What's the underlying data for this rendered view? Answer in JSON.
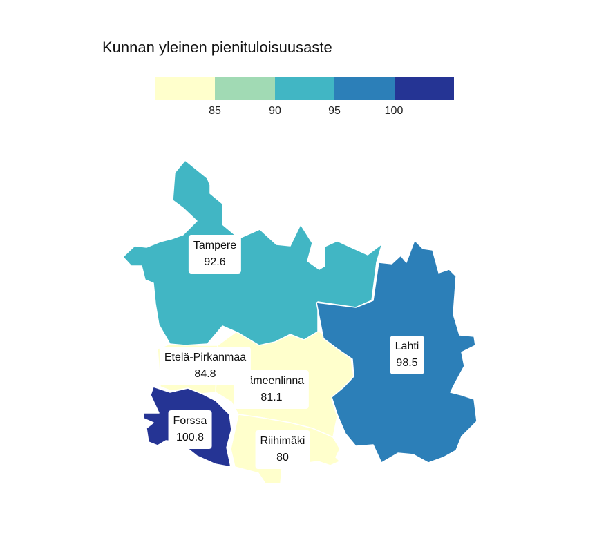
{
  "title": "Kunnan yleinen pienituloisuusaste",
  "legend": {
    "colors": [
      "#ffffcc",
      "#a1dab4",
      "#41b6c4",
      "#2c7fb8",
      "#253494"
    ],
    "ticks": [
      "85",
      "90",
      "95",
      "100"
    ]
  },
  "chart_data": {
    "type": "choropleth",
    "title": "Kunnan yleinen pienituloisuusaste",
    "bins": [
      85,
      90,
      95,
      100
    ],
    "regions": [
      {
        "name": "Tampere",
        "value": 92.6,
        "value_label": "92.6",
        "color": "#41b6c4"
      },
      {
        "name": "Lahti",
        "value": 98.5,
        "value_label": "98.5",
        "color": "#2c7fb8"
      },
      {
        "name": "Etelä-Pirkanmaa",
        "value": 84.8,
        "value_label": "84.8",
        "color": "#ffffcc"
      },
      {
        "name": "Hämeenlinna",
        "value": 81.1,
        "value_label": "81.1",
        "color": "#ffffcc"
      },
      {
        "name": "Forssa",
        "value": 100.8,
        "value_label": "100.8",
        "color": "#253494"
      },
      {
        "name": "Riihimäki",
        "value": 80,
        "value_label": "80",
        "color": "#ffffcc"
      }
    ]
  }
}
